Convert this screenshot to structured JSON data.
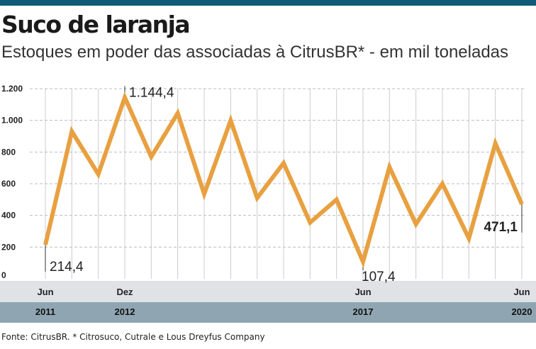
{
  "header": {
    "title": "Suco de laranja",
    "subtitle": "Estoques em poder das associadas à CitrusBR* - em mil toneladas"
  },
  "footer": {
    "source": "Fonte: CitrusBR. * Citrosuco, Cutrale e Lous Dreyfus Company"
  },
  "colors": {
    "line": "#e8a040",
    "top_bar": "#0f5a77",
    "month_band": "#dfe3e6",
    "year_band": "#8fa6b2",
    "grid": "#cccccc"
  },
  "chart_data": {
    "type": "line",
    "ylim": [
      0,
      1200
    ],
    "yticks": [
      0,
      200,
      400,
      600,
      800,
      1000,
      1200
    ],
    "ytick_labels": [
      "0",
      "200",
      "400",
      "600",
      "800",
      "1.000",
      "1.200"
    ],
    "grid": true,
    "x": [
      "2011-06",
      "2011-12",
      "2012-06",
      "2012-12",
      "2013-06",
      "2013-12",
      "2014-06",
      "2014-12",
      "2015-06",
      "2015-12",
      "2016-06",
      "2016-12",
      "2017-06",
      "2017-12",
      "2018-06",
      "2018-12",
      "2019-06",
      "2019-12",
      "2020-06"
    ],
    "series": [
      {
        "values": [
          214.4,
          930,
          660,
          1144.4,
          770,
          1045,
          535,
          1000,
          510,
          730,
          355,
          500,
          107.4,
          705,
          345,
          600,
          255,
          855,
          471.1
        ]
      }
    ],
    "month_labels": [
      {
        "index": 0,
        "text": "Jun"
      },
      {
        "index": 3,
        "text": "Dez"
      },
      {
        "index": 12,
        "text": "Jun"
      },
      {
        "index": 18,
        "text": "Jun"
      }
    ],
    "year_labels": [
      {
        "index": 0,
        "text": "2011"
      },
      {
        "index": 3,
        "text": "2012"
      },
      {
        "index": 12,
        "text": "2017"
      },
      {
        "index": 18,
        "text": "2020"
      }
    ],
    "annotations": [
      {
        "index": 0,
        "text": "214,4"
      },
      {
        "index": 3,
        "text": "1.144,4"
      },
      {
        "index": 12,
        "text": "107,4"
      },
      {
        "index": 18,
        "text": "471,1"
      }
    ]
  }
}
